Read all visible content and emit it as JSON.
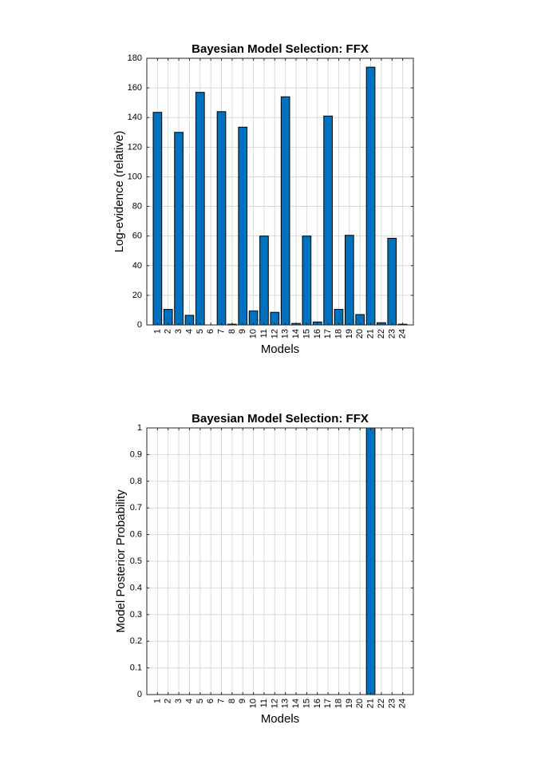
{
  "colors": {
    "bar": "#0072bd",
    "background": "#ffffff",
    "grid": "#d9d9d9",
    "axis": "#262626"
  },
  "chart_data": [
    {
      "type": "bar",
      "title": "Bayesian Model Selection: FFX",
      "xlabel": "Models",
      "ylabel": "Log-evidence (relative)",
      "categories": [
        "1",
        "2",
        "3",
        "4",
        "5",
        "6",
        "7",
        "8",
        "9",
        "10",
        "11",
        "12",
        "13",
        "14",
        "15",
        "16",
        "17",
        "18",
        "19",
        "20",
        "21",
        "22",
        "23",
        "24"
      ],
      "values": [
        143.5,
        10.5,
        130,
        6.5,
        157,
        0,
        144,
        0.5,
        133.5,
        9.5,
        60,
        8.5,
        154,
        1,
        60,
        2,
        141,
        10.5,
        60.5,
        7,
        174,
        1.5,
        58.5,
        0.5
      ],
      "ylim": [
        0,
        180
      ],
      "yticks": [
        0,
        20,
        40,
        60,
        80,
        100,
        120,
        140,
        160,
        180
      ],
      "ytick_labels": [
        "0",
        "20",
        "40",
        "60",
        "80",
        "100",
        "120",
        "140",
        "160",
        "180"
      ],
      "grid": true
    },
    {
      "type": "bar",
      "title": "Bayesian Model Selection: FFX",
      "xlabel": "Models",
      "ylabel": "Model Posterior Probability",
      "categories": [
        "1",
        "2",
        "3",
        "4",
        "5",
        "6",
        "7",
        "8",
        "9",
        "10",
        "11",
        "12",
        "13",
        "14",
        "15",
        "16",
        "17",
        "18",
        "19",
        "20",
        "21",
        "22",
        "23",
        "24"
      ],
      "values": [
        0,
        0,
        0,
        0,
        0,
        0,
        0,
        0,
        0,
        0,
        0,
        0,
        0,
        0,
        0,
        0,
        0,
        0,
        0,
        0,
        1,
        0,
        0,
        0
      ],
      "ylim": [
        0,
        1
      ],
      "yticks": [
        0,
        0.1,
        0.2,
        0.3,
        0.4,
        0.5,
        0.6,
        0.7,
        0.8,
        0.9,
        1
      ],
      "ytick_labels": [
        "0",
        "0.1",
        "0.2",
        "0.3",
        "0.4",
        "0.5",
        "0.6",
        "0.7",
        "0.8",
        "0.9",
        "1"
      ],
      "grid": true
    }
  ]
}
